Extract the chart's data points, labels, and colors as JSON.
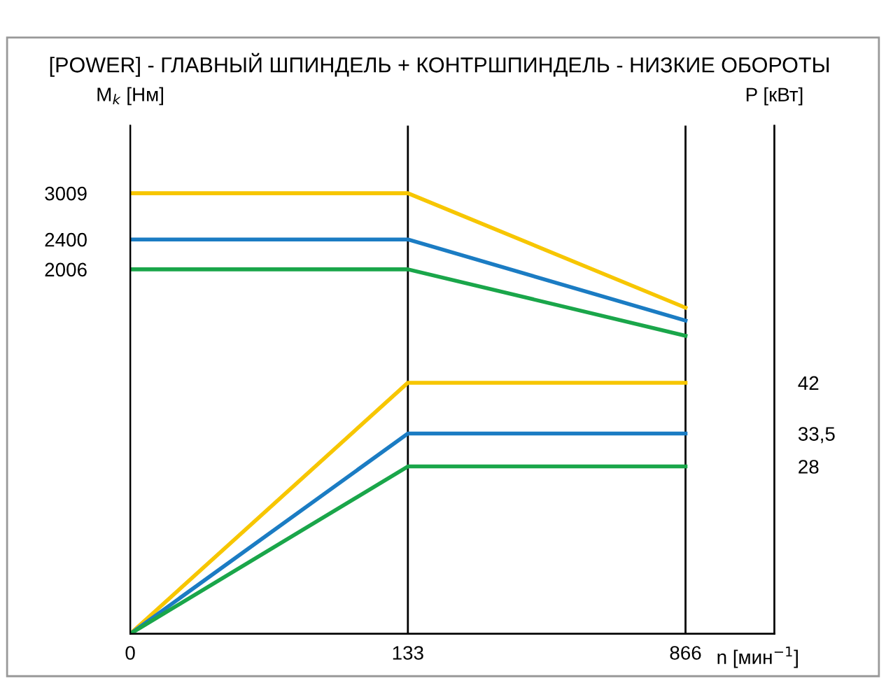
{
  "chart_data": {
    "type": "line",
    "title": "[POWER] - ГЛАВНЫЙ ШПИНДЕЛЬ + КОНТРШПИНДЕЛЬ - НИЗКИЕ ОБОРОТЫ",
    "ylabel": "M$_{k}$ [Нм]",
    "y2label": "P [кВт]",
    "xlabel": "n [мин$^{−1}$]",
    "grid": "x",
    "legend": false,
    "marker": "none",
    "line_style": "solid",
    "categories": [
      "0",
      "133",
      "866"
    ],
    "ylim": [
      -2800,
      3900
    ],
    "yticks": [
      2006,
      2400,
      3009
    ],
    "y2lim": [
      0,
      85
    ],
    "y2ticks": [
      28,
      {
        "value": 33.5,
        "label": "33,5"
      },
      42
    ],
    "series": [
      {
        "color": "#f7c600",
        "values": [
          3009,
          3009,
          1500
        ]
      },
      {
        "color": "#1b7cc3",
        "values": [
          2400,
          2400,
          1330
        ]
      },
      {
        "color": "#1aa64a",
        "values": [
          2006,
          2006,
          1130
        ]
      },
      {
        "color": "#f7c600",
        "axis": "y2",
        "values": [
          0,
          42,
          42
        ]
      },
      {
        "color": "#1b7cc3",
        "axis": "y2",
        "values": [
          0,
          33.5,
          33.5
        ]
      },
      {
        "color": "#1aa64a",
        "axis": "y2",
        "values": [
          0,
          28,
          28
        ]
      }
    ]
  }
}
